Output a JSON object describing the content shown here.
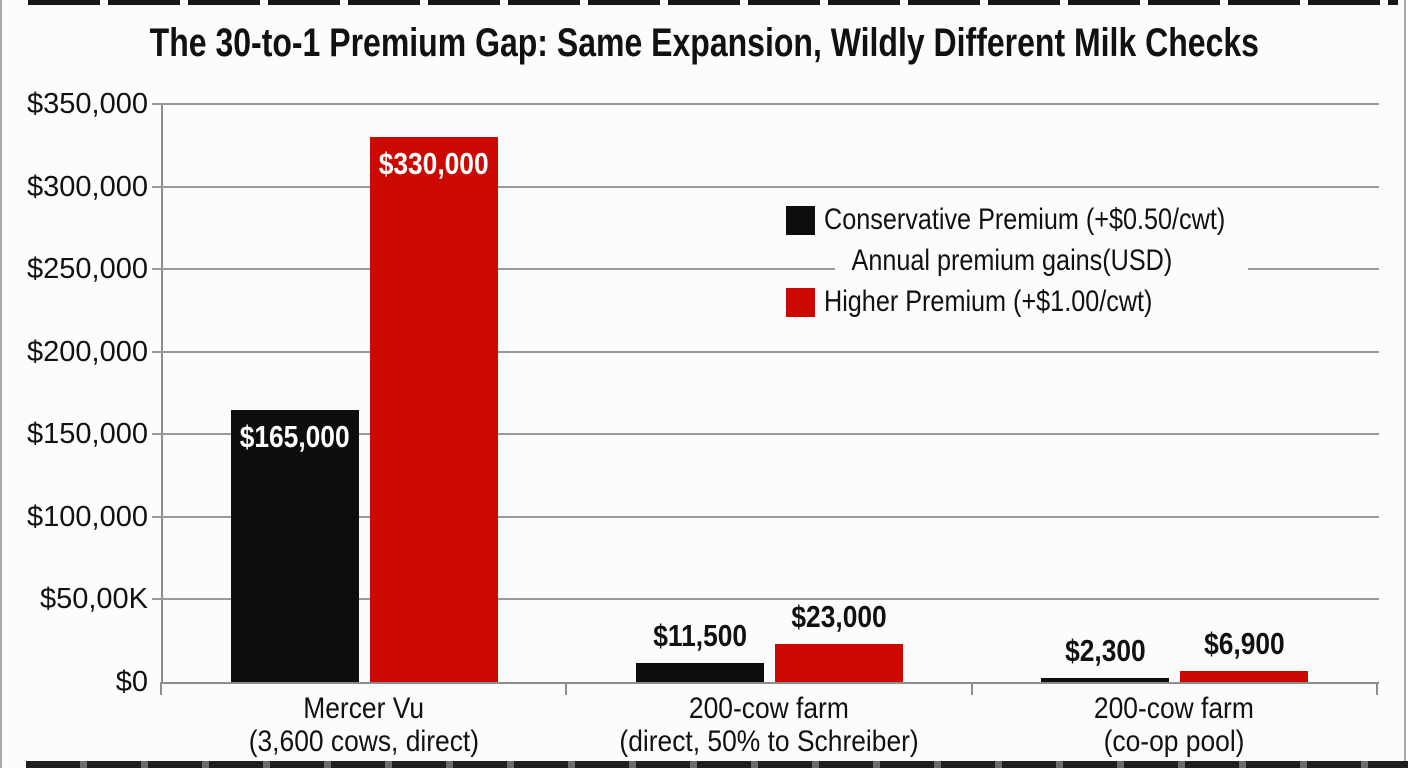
{
  "chart_data": {
    "type": "bar",
    "title": "The 30-to-1 Premium Gap: Same Expansion, Wildly Different Milk Checks",
    "axis_note": "Annual premium gains(USD)",
    "ylim": [
      0,
      350000
    ],
    "grid": true,
    "legend_position": "upper-right-inside",
    "y_ticks": [
      {
        "value": 0,
        "label": "$0"
      },
      {
        "value": 50000,
        "label": "$50,00K"
      },
      {
        "value": 100000,
        "label": "$100,000"
      },
      {
        "value": 150000,
        "label": "$150,000"
      },
      {
        "value": 200000,
        "label": "$200,000"
      },
      {
        "value": 250000,
        "label": "$250,000"
      },
      {
        "value": 300000,
        "label": "$300,000"
      },
      {
        "value": 350000,
        "label": "$350,000"
      }
    ],
    "categories": [
      {
        "line1": "Mercer Vu",
        "line2": "(3,600 cows, direct)"
      },
      {
        "line1": "200-cow farm",
        "line2": "(direct, 50% to Schreiber)"
      },
      {
        "line1": "200-cow farm",
        "line2": "(co-op pool)"
      }
    ],
    "series": [
      {
        "name": "Conservative Premium (+$0.50/cwt)",
        "key": "conservative",
        "color": "#0d0d0d",
        "values": [
          165000,
          11500,
          2300
        ],
        "value_labels": [
          "$165,000",
          "$11,500",
          "$2,300"
        ]
      },
      {
        "name": "Higher Premium (+$1.00/cwt)",
        "key": "higher",
        "color": "#cb0900",
        "values": [
          330000,
          23000,
          6900
        ],
        "value_labels": [
          "$330,000",
          "$23,000",
          "$6,900"
        ]
      }
    ],
    "colors": {
      "grid": "#999999",
      "axis": "#8d8d8d",
      "text": "#111111",
      "background": "#fcfcfc",
      "inside_label": "#ffffff"
    }
  }
}
